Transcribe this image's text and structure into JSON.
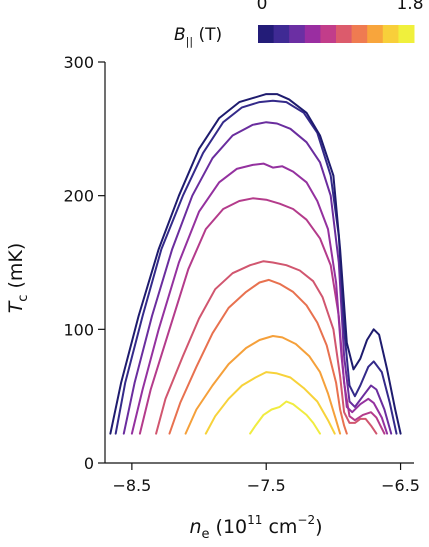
{
  "chart_data": {
    "type": "line",
    "xlabel": {
      "main": "n",
      "sub": "e",
      "units_pre": " (10",
      "sup1": "11",
      "units_mid": " cm",
      "sup2": "−2",
      "units_post": ")"
    },
    "ylabel": {
      "main": "T",
      "sub": "c",
      "units": " (mK)"
    },
    "xlim": [
      -8.7,
      -6.4
    ],
    "ylim": [
      0,
      300
    ],
    "xticks": [
      -8.5,
      -7.5,
      -6.5
    ],
    "xtick_labels": [
      "−8.5",
      "−7.5",
      "−6.5"
    ],
    "yticks": [
      0,
      100,
      200,
      300
    ],
    "ytick_labels": [
      "0",
      "100",
      "200",
      "300"
    ],
    "colorbar": {
      "label_main": "B",
      "label_sub": "||",
      "label_units": " (T)",
      "min_label": "0",
      "max_label": "1.8",
      "colors": [
        "#231c78",
        "#3f2a94",
        "#6b2fa3",
        "#9a2ea1",
        "#c23d8a",
        "#dc5b6c",
        "#ef7b51",
        "#f8a53c",
        "#f8cf3a",
        "#f0f03c"
      ]
    },
    "series": [
      {
        "color": "#1e1b6e",
        "points": [
          [
            -8.66,
            22
          ],
          [
            -8.58,
            60
          ],
          [
            -8.45,
            110
          ],
          [
            -8.3,
            160
          ],
          [
            -8.15,
            200
          ],
          [
            -8.0,
            235
          ],
          [
            -7.85,
            258
          ],
          [
            -7.7,
            270
          ],
          [
            -7.6,
            273
          ],
          [
            -7.5,
            276
          ],
          [
            -7.42,
            276
          ],
          [
            -7.33,
            272
          ],
          [
            -7.2,
            262
          ],
          [
            -7.1,
            245
          ],
          [
            -7.0,
            215
          ],
          [
            -6.95,
            160
          ],
          [
            -6.9,
            90
          ],
          [
            -6.85,
            70
          ],
          [
            -6.8,
            78
          ],
          [
            -6.75,
            92
          ],
          [
            -6.7,
            100
          ],
          [
            -6.66,
            96
          ],
          [
            -6.6,
            70
          ],
          [
            -6.54,
            40
          ],
          [
            -6.5,
            22
          ]
        ]
      },
      {
        "color": "#342a8a",
        "points": [
          [
            -8.62,
            22
          ],
          [
            -8.55,
            60
          ],
          [
            -8.42,
            110
          ],
          [
            -8.28,
            160
          ],
          [
            -8.12,
            200
          ],
          [
            -7.97,
            232
          ],
          [
            -7.82,
            255
          ],
          [
            -7.68,
            266
          ],
          [
            -7.55,
            270
          ],
          [
            -7.45,
            271
          ],
          [
            -7.35,
            270
          ],
          [
            -7.22,
            262
          ],
          [
            -7.12,
            247
          ],
          [
            -7.02,
            215
          ],
          [
            -6.96,
            170
          ],
          [
            -6.92,
            100
          ],
          [
            -6.88,
            58
          ],
          [
            -6.84,
            50
          ],
          [
            -6.8,
            58
          ],
          [
            -6.74,
            72
          ],
          [
            -6.7,
            76
          ],
          [
            -6.64,
            68
          ],
          [
            -6.58,
            45
          ],
          [
            -6.53,
            22
          ]
        ]
      },
      {
        "color": "#6a2d9e",
        "points": [
          [
            -8.56,
            22
          ],
          [
            -8.48,
            60
          ],
          [
            -8.35,
            110
          ],
          [
            -8.2,
            160
          ],
          [
            -8.05,
            200
          ],
          [
            -7.9,
            228
          ],
          [
            -7.75,
            245
          ],
          [
            -7.6,
            253
          ],
          [
            -7.5,
            255
          ],
          [
            -7.42,
            254
          ],
          [
            -7.32,
            250
          ],
          [
            -7.2,
            240
          ],
          [
            -7.1,
            225
          ],
          [
            -7.02,
            200
          ],
          [
            -6.96,
            150
          ],
          [
            -6.92,
            80
          ],
          [
            -6.88,
            46
          ],
          [
            -6.84,
            42
          ],
          [
            -6.78,
            50
          ],
          [
            -6.72,
            58
          ],
          [
            -6.68,
            55
          ],
          [
            -6.62,
            40
          ],
          [
            -6.57,
            22
          ]
        ]
      },
      {
        "color": "#94319f",
        "points": [
          [
            -8.5,
            22
          ],
          [
            -8.42,
            55
          ],
          [
            -8.3,
            100
          ],
          [
            -8.15,
            150
          ],
          [
            -8.0,
            188
          ],
          [
            -7.85,
            210
          ],
          [
            -7.72,
            220
          ],
          [
            -7.6,
            223
          ],
          [
            -7.52,
            224
          ],
          [
            -7.45,
            221
          ],
          [
            -7.38,
            222
          ],
          [
            -7.3,
            218
          ],
          [
            -7.2,
            210
          ],
          [
            -7.12,
            196
          ],
          [
            -7.04,
            175
          ],
          [
            -6.98,
            135
          ],
          [
            -6.94,
            80
          ],
          [
            -6.9,
            42
          ],
          [
            -6.86,
            38
          ],
          [
            -6.8,
            44
          ],
          [
            -6.74,
            48
          ],
          [
            -6.7,
            45
          ],
          [
            -6.64,
            34
          ],
          [
            -6.6,
            22
          ]
        ]
      },
      {
        "color": "#b43b8b",
        "points": [
          [
            -8.44,
            22
          ],
          [
            -8.36,
            55
          ],
          [
            -8.22,
            100
          ],
          [
            -8.08,
            145
          ],
          [
            -7.95,
            175
          ],
          [
            -7.82,
            190
          ],
          [
            -7.7,
            196
          ],
          [
            -7.6,
            198
          ],
          [
            -7.5,
            197
          ],
          [
            -7.4,
            194
          ],
          [
            -7.3,
            190
          ],
          [
            -7.2,
            182
          ],
          [
            -7.1,
            168
          ],
          [
            -7.02,
            148
          ],
          [
            -6.96,
            110
          ],
          [
            -6.92,
            60
          ],
          [
            -6.88,
            35
          ],
          [
            -6.84,
            32
          ],
          [
            -6.78,
            36
          ],
          [
            -6.72,
            38
          ],
          [
            -6.68,
            34
          ],
          [
            -6.62,
            22
          ]
        ]
      },
      {
        "color": "#d1566f",
        "points": [
          [
            -8.32,
            22
          ],
          [
            -8.25,
            48
          ],
          [
            -8.12,
            80
          ],
          [
            -8.0,
            108
          ],
          [
            -7.88,
            130
          ],
          [
            -7.75,
            142
          ],
          [
            -7.62,
            148
          ],
          [
            -7.52,
            151
          ],
          [
            -7.45,
            150
          ],
          [
            -7.35,
            148
          ],
          [
            -7.25,
            144
          ],
          [
            -7.15,
            136
          ],
          [
            -7.08,
            124
          ],
          [
            -7.0,
            100
          ],
          [
            -6.95,
            65
          ],
          [
            -6.92,
            38
          ],
          [
            -6.88,
            30
          ],
          [
            -6.84,
            30
          ],
          [
            -6.8,
            33
          ],
          [
            -6.76,
            33
          ],
          [
            -6.72,
            28
          ],
          [
            -6.68,
            22
          ]
        ]
      },
      {
        "color": "#e8714f",
        "points": [
          [
            -8.22,
            22
          ],
          [
            -8.14,
            45
          ],
          [
            -8.02,
            72
          ],
          [
            -7.9,
            97
          ],
          [
            -7.78,
            116
          ],
          [
            -7.65,
            128
          ],
          [
            -7.55,
            135
          ],
          [
            -7.48,
            137
          ],
          [
            -7.4,
            134
          ],
          [
            -7.3,
            128
          ],
          [
            -7.2,
            118
          ],
          [
            -7.12,
            105
          ],
          [
            -7.05,
            88
          ],
          [
            -6.98,
            60
          ],
          [
            -6.95,
            40
          ],
          [
            -6.92,
            28
          ],
          [
            -6.9,
            22
          ]
        ]
      },
      {
        "color": "#f5a03a",
        "points": [
          [
            -8.1,
            22
          ],
          [
            -8.02,
            40
          ],
          [
            -7.9,
            58
          ],
          [
            -7.78,
            74
          ],
          [
            -7.65,
            86
          ],
          [
            -7.55,
            92
          ],
          [
            -7.45,
            95
          ],
          [
            -7.38,
            94
          ],
          [
            -7.28,
            89
          ],
          [
            -7.18,
            80
          ],
          [
            -7.1,
            68
          ],
          [
            -7.04,
            52
          ],
          [
            -6.98,
            32
          ],
          [
            -6.95,
            22
          ]
        ]
      },
      {
        "color": "#f7d23a",
        "points": [
          [
            -7.95,
            22
          ],
          [
            -7.88,
            35
          ],
          [
            -7.78,
            48
          ],
          [
            -7.68,
            58
          ],
          [
            -7.58,
            64
          ],
          [
            -7.5,
            68
          ],
          [
            -7.42,
            67
          ],
          [
            -7.32,
            64
          ],
          [
            -7.22,
            56
          ],
          [
            -7.12,
            46
          ],
          [
            -7.04,
            32
          ],
          [
            -6.99,
            22
          ]
        ]
      },
      {
        "color": "#f0ec40",
        "points": [
          [
            -7.62,
            22
          ],
          [
            -7.58,
            28
          ],
          [
            -7.52,
            36
          ],
          [
            -7.46,
            40
          ],
          [
            -7.4,
            42
          ],
          [
            -7.35,
            46
          ],
          [
            -7.3,
            44
          ],
          [
            -7.25,
            40
          ],
          [
            -7.2,
            36
          ],
          [
            -7.15,
            30
          ],
          [
            -7.1,
            22
          ]
        ]
      }
    ]
  }
}
